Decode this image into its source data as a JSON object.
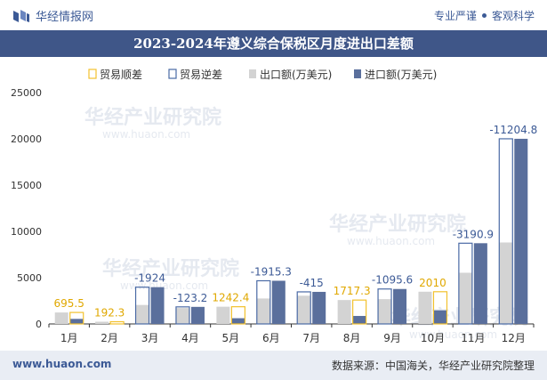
{
  "header": {
    "site_name": "华经情报网",
    "slogan_left": "专业严谨",
    "slogan_right": "客观科学"
  },
  "title": "2023-2024年遵义综合保税区月度进出口差额",
  "footer": {
    "website": "www.huaon.com",
    "source": "数据来源：中国海关，华经产业研究院整理"
  },
  "watermark": "华经产业研究院",
  "watermark_url": "www.huaon.com",
  "colors": {
    "surplus": "#f2c12e",
    "deficit": "#4a6aa5",
    "export": "#d3d3d3",
    "import": "#5a6f9c",
    "title_bg": "#3f5688"
  },
  "chart_data": {
    "type": "bar",
    "categories": [
      "1月",
      "2月",
      "3月",
      "4月",
      "5月",
      "6月",
      "7月",
      "8月",
      "9月",
      "10月",
      "11月",
      "12月"
    ],
    "ylim": [
      0,
      25000
    ],
    "yticks": [
      "0",
      "5000",
      "10000",
      "15000",
      "20000",
      "25000"
    ],
    "legend_position": "top",
    "legend": [
      "贸易顺差",
      "贸易逆差",
      "出口额(万美元)",
      "进口额(万美元)"
    ],
    "series": [
      {
        "name": "出口额(万美元)",
        "values": [
          1240,
          240,
          2050,
          1720,
          1860,
          2750,
          3050,
          2580,
          2680,
          3480,
          5530,
          8800
        ]
      },
      {
        "name": "进口额(万美元)",
        "values": [
          545,
          48,
          3974,
          1843,
          618,
          4665,
          3465,
          863,
          3776,
          1470,
          8721,
          20005
        ]
      }
    ],
    "balance": [
      {
        "label": "695.5",
        "value": 695.5
      },
      {
        "label": "192.3",
        "value": 192.3
      },
      {
        "label": "-1924",
        "value": -1924
      },
      {
        "label": "-123.2",
        "value": -123.2
      },
      {
        "label": "1242.4",
        "value": 1242.4
      },
      {
        "label": "-1915.3",
        "value": -1915.3
      },
      {
        "label": "-415",
        "value": -415
      },
      {
        "label": "1717.3",
        "value": 1717.3
      },
      {
        "label": "-1095.6",
        "value": -1095.6
      },
      {
        "label": "2010",
        "value": 2010
      },
      {
        "label": "-3190.9",
        "value": -3190.9
      },
      {
        "label": "-11204.8",
        "value": -11204.8
      }
    ]
  }
}
